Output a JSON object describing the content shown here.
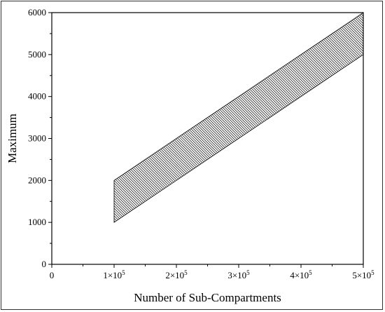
{
  "chart_data": {
    "type": "area",
    "title": "",
    "xlabel": "Number of Sub-Compartments",
    "ylabel": "Maximum",
    "xlim": [
      0,
      500000
    ],
    "ylim": [
      0,
      6000
    ],
    "x_ticks": [
      0,
      100000,
      200000,
      300000,
      400000,
      500000
    ],
    "x_tick_labels": [
      {
        "mant": "0",
        "exp": ""
      },
      {
        "mant": "1×10",
        "exp": "5"
      },
      {
        "mant": "2×10",
        "exp": "5"
      },
      {
        "mant": "3×10",
        "exp": "5"
      },
      {
        "mant": "4×10",
        "exp": "5"
      },
      {
        "mant": "5×10",
        "exp": "5"
      }
    ],
    "y_ticks": [
      0,
      1000,
      2000,
      3000,
      4000,
      5000,
      6000
    ],
    "y_tick_labels": [
      "0",
      "1000",
      "2000",
      "3000",
      "4000",
      "5000",
      "6000"
    ],
    "grid": false,
    "band": {
      "x": [
        100000,
        500000
      ],
      "lower": [
        1000,
        5000
      ],
      "upper": [
        2000,
        6000
      ],
      "fill": "hatched",
      "color": "#000000"
    }
  }
}
